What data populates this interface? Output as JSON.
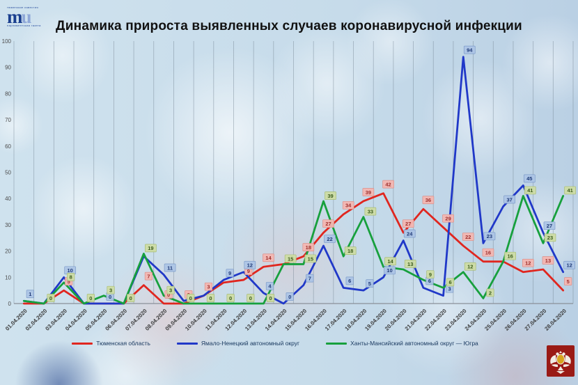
{
  "title": "Динамика прироста выявленных случаев коронавирусной инфекции",
  "logo": {
    "top_text": "тюменские известия",
    "mark_m": "m",
    "mark_u": "u",
    "bottom_text": "парламентская газета"
  },
  "chart_data": {
    "type": "line",
    "title": "Динамика прироста выявленных случаев коронавирусной инфекции",
    "x_labels": [
      "01.04.2020",
      "02.04.2020",
      "03.04.2020",
      "04.04.2020",
      "05.04.2020",
      "06.04.2020",
      "07.04.2020",
      "08.04.2020",
      "09.04.2020",
      "10.04.2020",
      "11.04.2020",
      "12.04.2020",
      "13.04.2020",
      "14.04.2020",
      "15.04.2020",
      "16.04.2020",
      "17.04.2020",
      "18.04.2020",
      "19.04.2020",
      "20.04.2020",
      "21.04.2020",
      "22.04.2020",
      "23.04.2020",
      "24.04.2020",
      "25.04.2020",
      "26.04.2020",
      "27.04.2020",
      "28.04.2020"
    ],
    "ylim": [
      0,
      100
    ],
    "y_ticks": [
      0,
      10,
      20,
      30,
      40,
      50,
      60,
      70,
      80,
      90,
      100
    ],
    "grid": "vertical",
    "legend_position": "bottom",
    "series": [
      {
        "name": "Тюменская область",
        "color": "#e0261f",
        "label_bg": "#f3b6b1",
        "label_border": "#dd8f88",
        "label_text": "#9e2f2c",
        "values": [
          0,
          0,
          5,
          0,
          0,
          0,
          7,
          0,
          0,
          3,
          8,
          9,
          14,
          15,
          18,
          27,
          34,
          39,
          42,
          27,
          36,
          29,
          22,
          16,
          16,
          12,
          13,
          5
        ],
        "label_visible": [
          false,
          false,
          true,
          false,
          false,
          false,
          true,
          true,
          true,
          true,
          false,
          true,
          true,
          false,
          true,
          true,
          true,
          true,
          true,
          true,
          true,
          true,
          true,
          true,
          false,
          true,
          true,
          true
        ]
      },
      {
        "name": "Ямало-Ненецкий автономный округ",
        "color": "#2038c8",
        "label_bg": "#adc5e6",
        "label_border": "#7e9cc9",
        "label_text": "#1f3a78",
        "values": [
          1,
          0,
          10,
          0,
          0,
          0,
          18,
          11,
          1,
          3,
          9,
          12,
          4,
          0,
          7,
          22,
          6,
          5,
          10,
          24,
          6,
          3,
          94,
          23,
          37,
          45,
          27,
          12
        ],
        "label_visible": [
          true,
          false,
          true,
          false,
          true,
          false,
          false,
          true,
          false,
          false,
          true,
          true,
          true,
          true,
          true,
          true,
          true,
          true,
          true,
          true,
          true,
          true,
          true,
          true,
          true,
          true,
          true,
          true
        ]
      },
      {
        "name": "Ханты-Мансийский автономный округ — Югра",
        "color": "#17a03d",
        "label_bg": "#cedca4",
        "label_border": "#a8bd74",
        "label_text": "#3c5c1e",
        "values": [
          1,
          0,
          8,
          0,
          3,
          0,
          19,
          3,
          0,
          0,
          0,
          0,
          0,
          15,
          15,
          39,
          18,
          33,
          14,
          13,
          9,
          6,
          12,
          2,
          16,
          41,
          23,
          41
        ],
        "label_visible": [
          false,
          true,
          true,
          true,
          true,
          true,
          true,
          true,
          true,
          true,
          true,
          true,
          true,
          true,
          true,
          true,
          true,
          true,
          true,
          true,
          true,
          true,
          true,
          true,
          true,
          true,
          true,
          true
        ]
      }
    ]
  },
  "legend": {
    "items": [
      "Тюменская область",
      "Ямало-Ненецкий автономный округ",
      "Ханты-Мансийский автономный округ — Югра"
    ]
  }
}
